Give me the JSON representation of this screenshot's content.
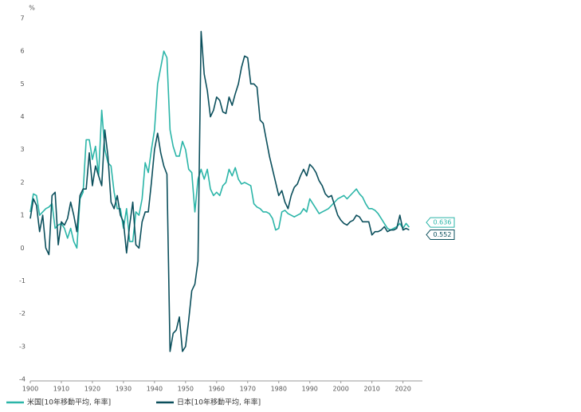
{
  "chart_data": {
    "type": "line",
    "y_unit": "%",
    "x": [
      1900,
      1901,
      1902,
      1903,
      1904,
      1905,
      1906,
      1907,
      1908,
      1909,
      1910,
      1911,
      1912,
      1913,
      1914,
      1915,
      1916,
      1917,
      1918,
      1919,
      1920,
      1921,
      1922,
      1923,
      1924,
      1925,
      1926,
      1927,
      1928,
      1929,
      1930,
      1931,
      1932,
      1933,
      1934,
      1935,
      1936,
      1937,
      1938,
      1939,
      1940,
      1941,
      1942,
      1943,
      1944,
      1945,
      1946,
      1947,
      1948,
      1949,
      1950,
      1951,
      1952,
      1953,
      1954,
      1955,
      1956,
      1957,
      1958,
      1959,
      1960,
      1961,
      1962,
      1963,
      1964,
      1965,
      1966,
      1967,
      1968,
      1969,
      1970,
      1971,
      1972,
      1973,
      1974,
      1975,
      1976,
      1977,
      1978,
      1979,
      1980,
      1981,
      1982,
      1983,
      1984,
      1985,
      1986,
      1987,
      1988,
      1989,
      1990,
      1991,
      1992,
      1993,
      1994,
      1995,
      1996,
      1997,
      1998,
      1999,
      2000,
      2001,
      2002,
      2003,
      2004,
      2005,
      2006,
      2007,
      2008,
      2009,
      2010,
      2011,
      2012,
      2013,
      2014,
      2015,
      2016,
      2017,
      2018,
      2019,
      2020,
      2021,
      2022
    ],
    "series": [
      {
        "name": "米国[10年移動平均, 年率]",
        "color": "#2bb5a8",
        "values": [
          1.1,
          1.65,
          1.6,
          1.0,
          1.1,
          1.2,
          1.25,
          1.35,
          0.6,
          0.7,
          0.75,
          0.6,
          0.3,
          0.6,
          0.2,
          0.0,
          1.5,
          1.7,
          3.3,
          3.3,
          2.7,
          3.1,
          2.2,
          4.2,
          3.0,
          2.6,
          2.5,
          1.7,
          1.2,
          1.2,
          0.6,
          1.2,
          0.2,
          0.2,
          1.1,
          1.0,
          1.5,
          2.6,
          2.3,
          3.0,
          3.6,
          5.0,
          5.5,
          6.0,
          5.8,
          3.6,
          3.1,
          2.8,
          2.8,
          3.25,
          3.0,
          2.4,
          2.3,
          1.1,
          2.1,
          2.4,
          2.1,
          2.4,
          1.8,
          1.6,
          1.7,
          1.6,
          1.9,
          2.0,
          2.4,
          2.2,
          2.45,
          2.1,
          1.95,
          2.0,
          1.95,
          1.9,
          1.35,
          1.25,
          1.2,
          1.1,
          1.1,
          1.05,
          0.9,
          0.55,
          0.6,
          1.1,
          1.15,
          1.05,
          1.0,
          0.95,
          1.0,
          1.05,
          1.2,
          1.1,
          1.5,
          1.35,
          1.2,
          1.05,
          1.1,
          1.15,
          1.2,
          1.3,
          1.4,
          1.5,
          1.55,
          1.6,
          1.5,
          1.6,
          1.7,
          1.8,
          1.65,
          1.55,
          1.35,
          1.2,
          1.2,
          1.15,
          1.05,
          0.9,
          0.75,
          0.6,
          0.55,
          0.6,
          0.65,
          0.75,
          0.6,
          0.75,
          0.636
        ]
      },
      {
        "name": "日本[10年移動平均, 年率]",
        "color": "#0b4f5c",
        "values": [
          0.9,
          1.5,
          1.3,
          0.5,
          1.0,
          0.0,
          -0.2,
          1.6,
          1.7,
          0.1,
          0.8,
          0.7,
          0.9,
          1.4,
          1.0,
          0.5,
          1.6,
          1.8,
          1.8,
          2.9,
          1.9,
          2.5,
          2.2,
          1.9,
          3.6,
          2.8,
          1.4,
          1.2,
          1.6,
          1.0,
          0.8,
          -0.15,
          0.7,
          1.4,
          0.1,
          0.0,
          0.8,
          1.1,
          1.1,
          2.0,
          3.0,
          3.5,
          2.9,
          2.5,
          2.25,
          -3.15,
          -2.6,
          -2.5,
          -2.1,
          -3.15,
          -3.0,
          -2.2,
          -1.3,
          -1.1,
          -0.4,
          6.6,
          5.3,
          4.8,
          4.0,
          4.2,
          4.6,
          4.5,
          4.15,
          4.1,
          4.6,
          4.35,
          4.7,
          5.0,
          5.5,
          5.85,
          5.8,
          5.0,
          5.0,
          4.9,
          3.9,
          3.8,
          3.3,
          2.8,
          2.4,
          2.0,
          1.6,
          1.75,
          1.4,
          1.2,
          1.6,
          1.85,
          1.95,
          2.2,
          2.4,
          2.2,
          2.55,
          2.45,
          2.3,
          2.05,
          1.9,
          1.65,
          1.55,
          1.6,
          1.3,
          1.0,
          0.85,
          0.75,
          0.7,
          0.8,
          0.85,
          1.0,
          0.95,
          0.8,
          0.8,
          0.8,
          0.4,
          0.5,
          0.5,
          0.55,
          0.65,
          0.5,
          0.55,
          0.55,
          0.6,
          1.0,
          0.55,
          0.6,
          0.552
        ]
      }
    ],
    "xlim": [
      1900,
      2026
    ],
    "xticks": [
      1900,
      1910,
      1920,
      1930,
      1940,
      1950,
      1960,
      1970,
      1980,
      1990,
      2000,
      2010,
      2020
    ],
    "ylim": [
      -4,
      7
    ],
    "yticks": [
      -4,
      -3,
      -2,
      -1,
      0,
      1,
      2,
      3,
      4,
      5,
      6,
      7
    ],
    "grid": false
  }
}
